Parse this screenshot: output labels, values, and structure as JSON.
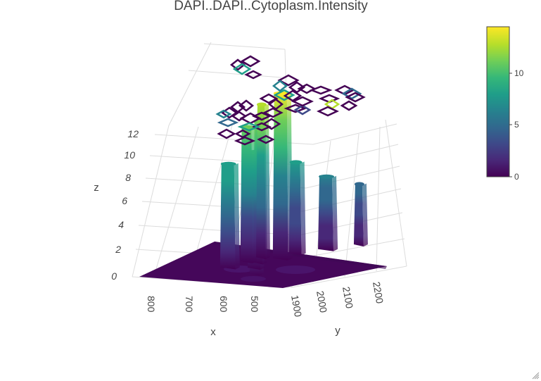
{
  "chart_data": {
    "type": "surface",
    "title": "DAPI..DAPI..Cytoplasm.Intensity",
    "xlabel": "x",
    "ylabel": "y",
    "zlabel": "z",
    "x_ticks": [
      "800",
      "700",
      "600",
      "500"
    ],
    "y_ticks": [
      "1900",
      "2000",
      "2100",
      "2200"
    ],
    "z_ticks": [
      "0",
      "2",
      "4",
      "6",
      "8",
      "10",
      "12"
    ],
    "zlim": [
      0,
      14
    ],
    "colorscale": "viridis",
    "colorbar": {
      "ticks": [
        "0",
        "5",
        "10"
      ],
      "range": [
        0,
        14.5
      ]
    },
    "peaks": [
      {
        "x": 760,
        "y": 2150,
        "z": 7.2
      },
      {
        "x": 700,
        "y": 2080,
        "z": 9.5
      },
      {
        "x": 640,
        "y": 2020,
        "z": 11.5
      },
      {
        "x": 690,
        "y": 1990,
        "z": 8.5
      },
      {
        "x": 600,
        "y": 2040,
        "z": 13.5
      },
      {
        "x": 570,
        "y": 1940,
        "z": 12.5
      },
      {
        "x": 620,
        "y": 1960,
        "z": 11.0
      },
      {
        "x": 540,
        "y": 2010,
        "z": 7.5
      },
      {
        "x": 510,
        "y": 2070,
        "z": 6.0
      },
      {
        "x": 480,
        "y": 2140,
        "z": 5.0
      }
    ],
    "colors": {
      "viridis": [
        "#440154",
        "#482878",
        "#3e4989",
        "#31688e",
        "#26828e",
        "#1f9e89",
        "#35b779",
        "#6ece58",
        "#b5de2b",
        "#fde725"
      ]
    }
  }
}
